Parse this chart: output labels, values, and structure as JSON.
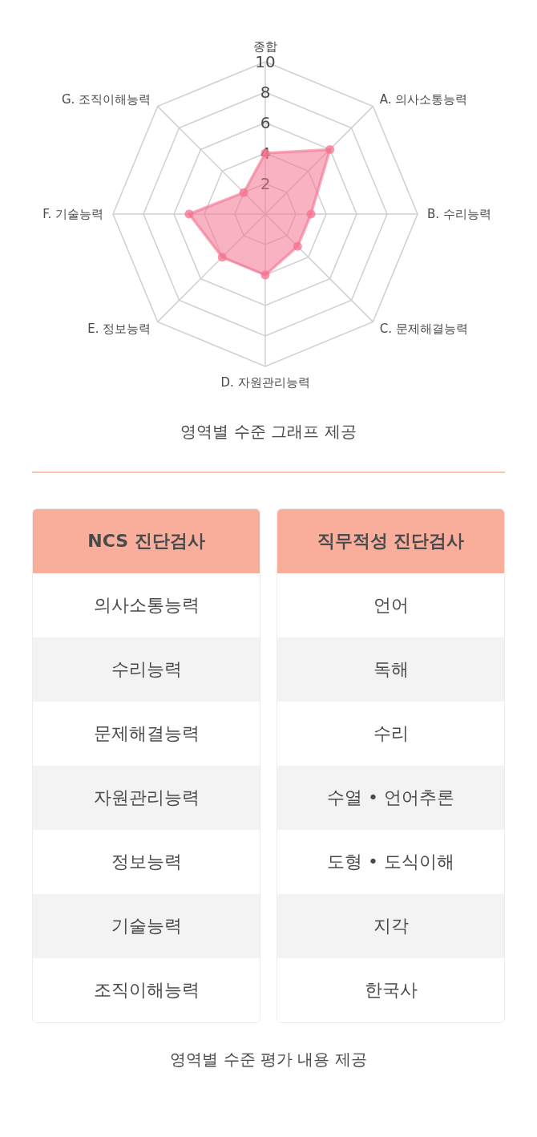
{
  "chart_data": [
    {
      "type": "radar",
      "categories": [
        "종합",
        "A. 의사소통능력",
        "B. 수리능력",
        "C. 문제해결능력",
        "D. 자원관리능력",
        "E. 정보능력",
        "F. 기술능력",
        "G. 조직이해능력"
      ],
      "series": [
        {
          "color": "#f4728f",
          "values": [
            4,
            6,
            3,
            3,
            4,
            4,
            5,
            2
          ]
        }
      ],
      "ylim": [
        0,
        10
      ],
      "yticks": [
        2,
        4,
        6,
        8,
        10
      ],
      "grid": true,
      "marker": "circle",
      "annotations": [
        "영역별 수준 그래프 제공"
      ]
    },
    {
      "type": "other",
      "title": "NCS 진단검사",
      "categories": [
        "의사소통능력",
        "수리능력",
        "문제해결능력",
        "자원관리능력",
        "정보능력",
        "기술능력",
        "조직이해능력"
      ]
    },
    {
      "type": "other",
      "title": "직무적성 진단검사",
      "categories": [
        "언어",
        "독해",
        "수리",
        "수열 • 언어추론",
        "도형 • 도식이해",
        "지각",
        "한국사"
      ],
      "annotations": [
        "영역별 수준 평가 내용 제공"
      ]
    }
  ]
}
